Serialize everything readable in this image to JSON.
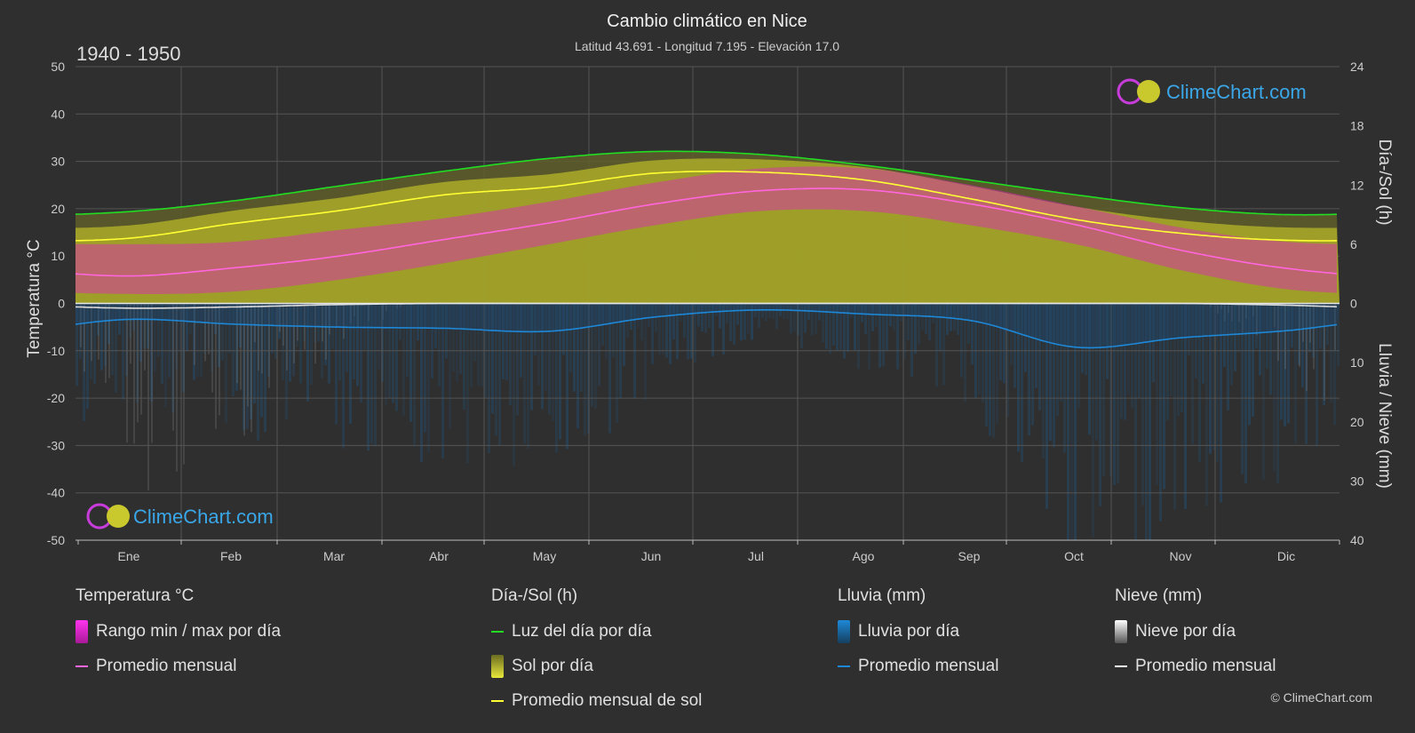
{
  "chart_data": {
    "type": "area",
    "title": "Cambio climático en Nice",
    "subtitle": "Latitud 43.691 - Longitud 7.195 - Elevación 17.0",
    "period": "1940 - 1950",
    "categories": [
      "Ene",
      "Feb",
      "Mar",
      "Abr",
      "May",
      "Jun",
      "Jul",
      "Ago",
      "Sep",
      "Oct",
      "Nov",
      "Dic"
    ],
    "y_left": {
      "label": "Temperatura °C",
      "range": [
        -50,
        50
      ],
      "ticks": [
        50,
        40,
        30,
        20,
        10,
        0,
        -10,
        -20,
        -30,
        -40,
        -50
      ]
    },
    "y_right_top": {
      "label": "Día-/Sol (h)",
      "range": [
        0,
        24
      ],
      "ticks": [
        24,
        18,
        12,
        6,
        0
      ]
    },
    "y_right_bottom": {
      "label": "Lluvia / Nieve (mm)",
      "range": [
        0,
        40
      ],
      "ticks": [
        10,
        20,
        30,
        40
      ]
    },
    "series": [
      {
        "name": "Luz del día por día",
        "unit": "h",
        "values": [
          9.3,
          10.4,
          11.9,
          13.4,
          14.7,
          15.4,
          15.1,
          14.0,
          12.5,
          11.0,
          9.7,
          9.0
        ]
      },
      {
        "name": "Promedio mensual de sol",
        "unit": "h",
        "values": [
          6.6,
          8.1,
          9.4,
          11.0,
          11.8,
          13.2,
          13.3,
          12.5,
          10.6,
          8.5,
          7.1,
          6.4
        ]
      },
      {
        "name": "Temperatura promedio mensual",
        "unit": "°C",
        "values": [
          5.8,
          7.5,
          10.0,
          13.5,
          17.0,
          21.0,
          23.8,
          24.0,
          21.0,
          16.6,
          11.2,
          7.4
        ]
      },
      {
        "name": "Rango min / max por día (max)",
        "unit": "°C",
        "values": [
          12.5,
          13.0,
          15.5,
          18.0,
          21.5,
          25.5,
          28.5,
          28.5,
          25.0,
          20.5,
          16.0,
          13.0
        ]
      },
      {
        "name": "Rango min / max por día (min)",
        "unit": "°C",
        "values": [
          2.0,
          2.5,
          5.0,
          8.5,
          12.5,
          16.5,
          19.5,
          19.5,
          16.5,
          12.5,
          7.0,
          3.0
        ]
      },
      {
        "name": "Lluvia promedio mensual",
        "unit": "mm",
        "values": [
          2.7,
          3.5,
          4.0,
          4.2,
          4.7,
          2.3,
          1.1,
          1.8,
          2.9,
          7.4,
          5.8,
          4.6
        ]
      },
      {
        "name": "Nieve promedio mensual",
        "unit": "mm",
        "values": [
          0.8,
          0.6,
          0.2,
          0,
          0,
          0,
          0,
          0,
          0,
          0,
          0,
          0.3
        ]
      }
    ],
    "legend_placement": "bottom",
    "grid": true
  },
  "watermark": "ClimeChart.com",
  "copyright": "© ClimeChart.com",
  "legend": {
    "temp": {
      "head": "Temperatura °C",
      "range": "Rango min / max por día",
      "avg": "Promedio mensual"
    },
    "sun": {
      "head": "Día-/Sol (h)",
      "daylight": "Luz del día por día",
      "sun": "Sol por día",
      "avg": "Promedio mensual de sol"
    },
    "rain": {
      "head": "Lluvia (mm)",
      "daily": "Lluvia por día",
      "avg": "Promedio mensual"
    },
    "snow": {
      "head": "Nieve (mm)",
      "daily": "Nieve por día",
      "avg": "Promedio mensual"
    }
  },
  "colors": {
    "daylight": "#22dd22",
    "sun_avg": "#ffff33",
    "sun_fill": "#b5b52a",
    "temp_avg": "#ff66dd",
    "temp_range": "#e020c0",
    "rain": "#1e88d8",
    "snow": "#aaaaaa"
  }
}
